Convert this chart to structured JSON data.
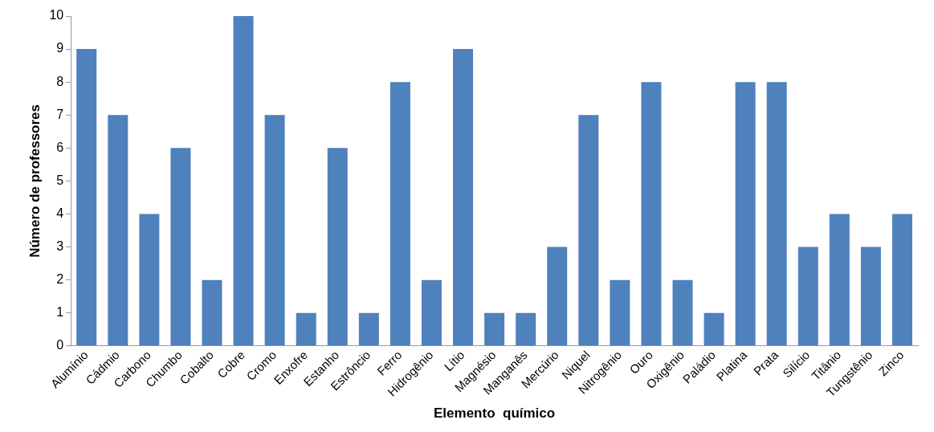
{
  "chart_data": {
    "type": "bar",
    "xlabel": "Elemento  químico",
    "ylabel": "Número de professores",
    "categories": [
      "Alumínio",
      "Cádmio",
      "Carbono",
      "Chumbo",
      "Cobalto",
      "Cobre",
      "Cromo",
      "Enxofre",
      "Estanho",
      "Estrôncio",
      "Ferro",
      "Hidrogênio",
      "Lítio",
      "Magnésio",
      "Manganês",
      "Mercúrio",
      "Niquel",
      "Nitrogênio",
      "Ouro",
      "Oxigênio",
      "Paládio",
      "Platina",
      "Prata",
      "Silício",
      "Titânio",
      "Tungstênio",
      "Zinco"
    ],
    "values": [
      9,
      7,
      4,
      6,
      2,
      10,
      7,
      1,
      6,
      1,
      8,
      2,
      9,
      1,
      1,
      3,
      7,
      2,
      8,
      2,
      1,
      8,
      8,
      3,
      4,
      3,
      4
    ],
    "color": "#4f81bd",
    "ylim": [
      0,
      10
    ],
    "yticks": [
      0,
      1,
      2,
      3,
      4,
      5,
      6,
      7,
      8,
      9,
      10
    ],
    "grid": false,
    "legend": false
  }
}
